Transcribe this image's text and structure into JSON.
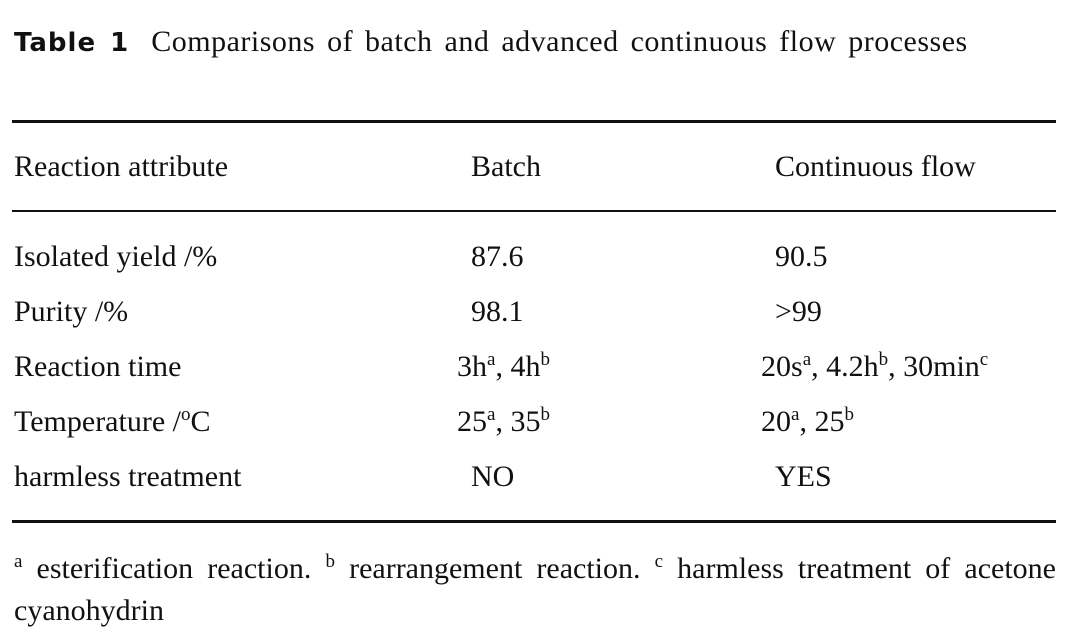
{
  "table": {
    "label": "Table 1",
    "caption": "Comparisons of batch and advanced continuous flow processes",
    "header": [
      "Reaction attribute",
      "Batch",
      "Continuous flow"
    ],
    "rows": [
      [
        [
          {
            "text": "Isolated yield /%"
          }
        ],
        [
          {
            "text": "87.6"
          }
        ],
        [
          {
            "text": "90.5"
          }
        ]
      ],
      [
        [
          {
            "text": "Purity /%"
          }
        ],
        [
          {
            "text": "98.1"
          }
        ],
        [
          {
            "text": ">99"
          }
        ]
      ],
      [
        [
          {
            "text": "Reaction time"
          }
        ],
        [
          {
            "text": "3h"
          },
          {
            "text": "a",
            "sup": true
          },
          {
            "text": ", 4h"
          },
          {
            "text": "b",
            "sup": true
          }
        ],
        [
          {
            "text": "20s"
          },
          {
            "text": "a",
            "sup": true
          },
          {
            "text": ", 4.2h"
          },
          {
            "text": "b",
            "sup": true
          },
          {
            "text": ", 30min"
          },
          {
            "text": "c",
            "sup": true
          }
        ]
      ],
      [
        [
          {
            "text": "Temperature /"
          },
          {
            "text": "o",
            "sup": true
          },
          {
            "text": "C"
          }
        ],
        [
          {
            "text": "25"
          },
          {
            "text": "a",
            "sup": true
          },
          {
            "text": ", 35"
          },
          {
            "text": "b",
            "sup": true
          }
        ],
        [
          {
            "text": "20"
          },
          {
            "text": "a",
            "sup": true
          },
          {
            "text": ", 25"
          },
          {
            "text": "b",
            "sup": true
          }
        ]
      ],
      [
        [
          {
            "text": "harmless treatment"
          }
        ],
        [
          {
            "text": "NO"
          }
        ],
        [
          {
            "text": "YES"
          }
        ]
      ]
    ],
    "footnote": [
      {
        "text": "a",
        "sup": true
      },
      {
        "text": " esterification reaction. "
      },
      {
        "text": "b",
        "sup": true
      },
      {
        "text": " rearrangement reaction. "
      },
      {
        "text": "c",
        "sup": true
      },
      {
        "text": " harmless treatment of acetone cyanohydrin"
      }
    ]
  }
}
